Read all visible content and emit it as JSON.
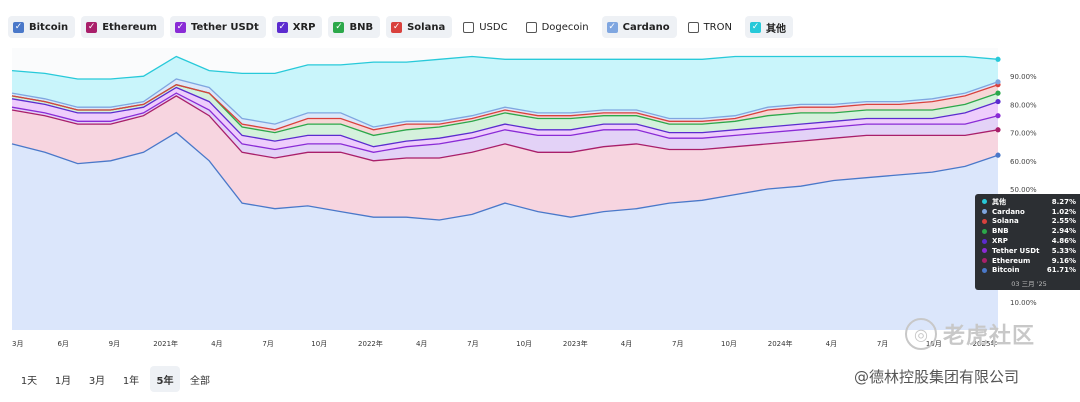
{
  "legend": [
    {
      "label": "Bitcoin",
      "color": "#4a78c9",
      "checked": true
    },
    {
      "label": "Ethereum",
      "color": "#a91f6a",
      "checked": true
    },
    {
      "label": "Tether USDt",
      "color": "#8a2bd6",
      "checked": true
    },
    {
      "label": "XRP",
      "color": "#5c2bcf",
      "checked": true
    },
    {
      "label": "BNB",
      "color": "#2ca84a",
      "checked": true
    },
    {
      "label": "Solana",
      "color": "#d9413d",
      "checked": true
    },
    {
      "label": "USDC",
      "color": "#888888",
      "checked": false
    },
    {
      "label": "Dogecoin",
      "color": "#888888",
      "checked": false
    },
    {
      "label": "Cardano",
      "color": "#7fa6e0",
      "checked": true
    },
    {
      "label": "TRON",
      "color": "#888888",
      "checked": false
    },
    {
      "label": "其他",
      "color": "#27c9d9",
      "checked": true
    }
  ],
  "ranges": [
    {
      "label": "1天",
      "active": false
    },
    {
      "label": "1月",
      "active": false
    },
    {
      "label": "3月",
      "active": false
    },
    {
      "label": "1年",
      "active": false
    },
    {
      "label": "5年",
      "active": true
    },
    {
      "label": "全部",
      "active": false
    }
  ],
  "tooltip": {
    "rows": [
      {
        "name": "其他",
        "value": "8.27%",
        "color": "#27c9d9"
      },
      {
        "name": "Cardano",
        "value": "1.02%",
        "color": "#7fa6e0"
      },
      {
        "name": "Solana",
        "value": "2.55%",
        "color": "#d9413d"
      },
      {
        "name": "BNB",
        "value": "2.94%",
        "color": "#2ca84a"
      },
      {
        "name": "XRP",
        "value": "4.86%",
        "color": "#5c2bcf"
      },
      {
        "name": "Tether USDt",
        "value": "5.33%",
        "color": "#8a2bd6"
      },
      {
        "name": "Ethereum",
        "value": "9.16%",
        "color": "#a91f6a"
      },
      {
        "name": "Bitcoin",
        "value": "61.71%",
        "color": "#4a78c9"
      }
    ],
    "date": "03 三月 '25"
  },
  "watermark": "老虎社区",
  "credit": "@德林控股集团有限公司",
  "chart_data": {
    "type": "area",
    "stacked": true,
    "ylim": [
      0,
      100
    ],
    "y_ticks": [
      "10.00%",
      "20.00%",
      "30.00%",
      "40.00%",
      "50.00%",
      "60.00%",
      "70.00%",
      "80.00%",
      "90.00%"
    ],
    "x_ticks": [
      "3月",
      "6月",
      "9月",
      "2021年",
      "4月",
      "7月",
      "10月",
      "2022年",
      "4月",
      "7月",
      "10月",
      "2023年",
      "4月",
      "7月",
      "10月",
      "2024年",
      "4月",
      "7月",
      "10月",
      "2025年"
    ],
    "x": [
      0,
      2,
      4,
      6,
      8,
      10,
      12,
      14,
      16,
      18,
      20,
      22,
      24,
      26,
      28,
      30,
      32,
      34,
      36,
      38,
      40,
      42,
      44,
      46,
      48,
      50,
      52,
      54,
      56,
      58,
      60
    ],
    "series": [
      {
        "name": "Bitcoin",
        "color": "#4a78c9",
        "fill": "#dbe6fb",
        "values": [
          66,
          63,
          59,
          60,
          63,
          70,
          60,
          45,
          43,
          44,
          42,
          40,
          40,
          39,
          41,
          45,
          42,
          40,
          42,
          43,
          45,
          46,
          48,
          50,
          51,
          53,
          54,
          55,
          56,
          58,
          62
        ]
      },
      {
        "name": "Ethereum",
        "color": "#a91f6a",
        "fill": "#f7d5e0",
        "values": [
          12,
          13,
          14,
          13,
          13,
          13,
          16,
          18,
          18,
          19,
          21,
          20,
          21,
          22,
          22,
          21,
          21,
          23,
          23,
          23,
          19,
          18,
          17,
          16,
          16,
          15,
          15,
          14,
          13,
          11,
          9
        ]
      },
      {
        "name": "Tether USDt",
        "color": "#8a2bd6",
        "fill": "#e3d2f7",
        "values": [
          1,
          1,
          1,
          1,
          1,
          1,
          2,
          3,
          3,
          3,
          3,
          3,
          4,
          5,
          5,
          5,
          6,
          6,
          6,
          5,
          4,
          4,
          4,
          4,
          4,
          4,
          4,
          4,
          4,
          4,
          5
        ]
      },
      {
        "name": "XRP",
        "color": "#5c2bcf",
        "fill": "#eecdfc",
        "values": [
          3,
          3,
          3,
          3,
          2,
          2,
          3,
          3,
          3,
          3,
          3,
          2,
          2,
          2,
          2,
          2,
          2,
          2,
          2,
          2,
          2,
          2,
          2,
          2,
          2,
          2,
          2,
          2,
          2,
          4,
          5
        ]
      },
      {
        "name": "BNB",
        "color": "#2ca84a",
        "fill": "#d4f1dc",
        "values": [
          1,
          1,
          1,
          1,
          1,
          1,
          3,
          3,
          3,
          4,
          4,
          4,
          4,
          4,
          4,
          4,
          4,
          4,
          3,
          3,
          3,
          3,
          3,
          4,
          4,
          3,
          3,
          3,
          3,
          3,
          3
        ]
      },
      {
        "name": "Solana",
        "color": "#d9413d",
        "fill": "#f7d6d6",
        "values": [
          0,
          0,
          0,
          0,
          0,
          0,
          0,
          1,
          1,
          2,
          2,
          2,
          2,
          1,
          1,
          1,
          1,
          1,
          1,
          1,
          1,
          1,
          1,
          2,
          2,
          2,
          2,
          2,
          3,
          3,
          3
        ]
      },
      {
        "name": "Cardano",
        "color": "#7fa6e0",
        "fill": "#dce8fa",
        "values": [
          1,
          1,
          1,
          1,
          1,
          2,
          2,
          2,
          2,
          2,
          2,
          1,
          1,
          1,
          1,
          1,
          1,
          1,
          1,
          1,
          1,
          1,
          1,
          1,
          1,
          1,
          1,
          1,
          1,
          1,
          1
        ]
      },
      {
        "name": "其他",
        "color": "#27c9d9",
        "fill": "#c9f5fb",
        "values": [
          8,
          9,
          10,
          10,
          9,
          8,
          6,
          16,
          18,
          17,
          17,
          23,
          21,
          22,
          21,
          17,
          19,
          19,
          18,
          18,
          21,
          21,
          21,
          18,
          17,
          17,
          16,
          16,
          15,
          13,
          8
        ]
      }
    ]
  }
}
